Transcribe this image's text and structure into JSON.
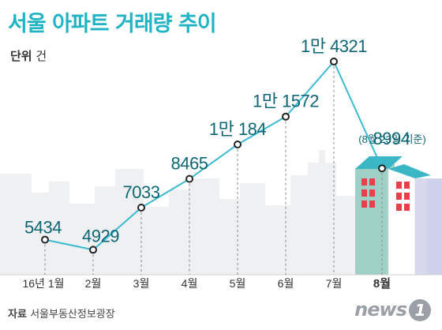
{
  "title": "서울 아파트 거래량 추이",
  "unit_label": "단위",
  "unit_value": "건",
  "source_label": "자료",
  "source_value": "서울부동산정보광장",
  "logo_text": "news",
  "logo_mark": "1",
  "colors": {
    "accent": "#1fb3c4",
    "line": "#3bbad0",
    "label_text": "#0f6675",
    "skyline": "#eef0f1"
  },
  "chart_data": {
    "type": "line",
    "title": "서울 아파트 거래량 추이",
    "xlabel": "",
    "ylabel": "",
    "categories": [
      "16년 1월",
      "2월",
      "3월",
      "4월",
      "5월",
      "6월",
      "7월",
      "8월"
    ],
    "highlight_category": "8월",
    "series": [
      {
        "values": [
          5434,
          4929,
          7033,
          8465,
          10184,
          11572,
          14321,
          8994
        ],
        "labels": [
          "5434",
          "4929",
          "7033",
          "8465",
          "1만 184",
          "1만 1572",
          "1만 4321",
          "8994"
        ]
      }
    ],
    "annotation": "(8월 23일 기준)",
    "ylim": [
      4000,
      15500
    ],
    "grid": false,
    "legend": "none"
  }
}
